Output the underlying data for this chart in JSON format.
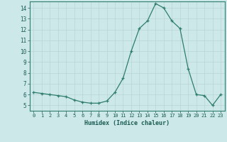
{
  "x": [
    0,
    1,
    2,
    3,
    4,
    5,
    6,
    7,
    8,
    9,
    10,
    11,
    12,
    13,
    14,
    15,
    16,
    17,
    18,
    19,
    20,
    21,
    22,
    23
  ],
  "y": [
    6.2,
    6.1,
    6.0,
    5.9,
    5.8,
    5.5,
    5.3,
    5.2,
    5.2,
    5.4,
    6.2,
    7.5,
    10.0,
    12.1,
    12.8,
    14.4,
    14.0,
    12.8,
    12.1,
    8.4,
    6.0,
    5.9,
    5.0,
    6.0
  ],
  "xlabel": "Humidex (Indice chaleur)",
  "xlim": [
    -0.5,
    23.5
  ],
  "ylim": [
    4.5,
    14.6
  ],
  "yticks": [
    5,
    6,
    7,
    8,
    9,
    10,
    11,
    12,
    13,
    14
  ],
  "xticks": [
    0,
    1,
    2,
    3,
    4,
    5,
    6,
    7,
    8,
    9,
    10,
    11,
    12,
    13,
    14,
    15,
    16,
    17,
    18,
    19,
    20,
    21,
    22,
    23
  ],
  "line_color": "#2e7d6e",
  "bg_color": "#cce8e8",
  "grid_color": "#b8d4d4",
  "label_color": "#1a5c52",
  "spine_color": "#2e7d6e"
}
